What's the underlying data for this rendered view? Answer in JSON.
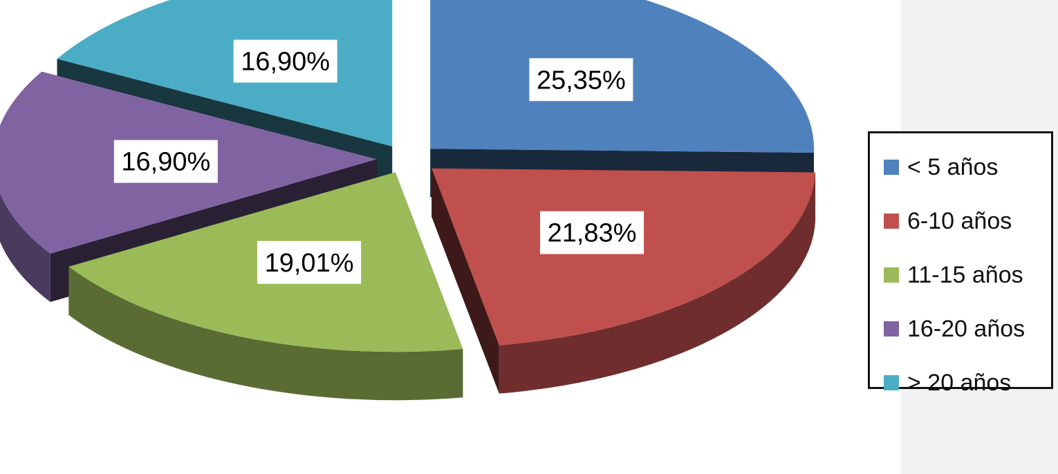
{
  "chart_data": {
    "type": "pie",
    "variant": "3d-exploded",
    "categories": [
      "< 5 años",
      "6-10 años",
      "11-15 años",
      "16-20 años",
      "> 20 años"
    ],
    "values": [
      25.35,
      21.83,
      19.01,
      16.9,
      16.9
    ],
    "value_labels": [
      "25,35%",
      "21,83%",
      "19,01%",
      "16,90%",
      "16,90%"
    ],
    "colors": [
      "#4f81bd",
      "#c0504d",
      "#9bbb59",
      "#8064a2",
      "#4bacc6"
    ],
    "legend": {
      "placement": "right"
    },
    "title": ""
  }
}
